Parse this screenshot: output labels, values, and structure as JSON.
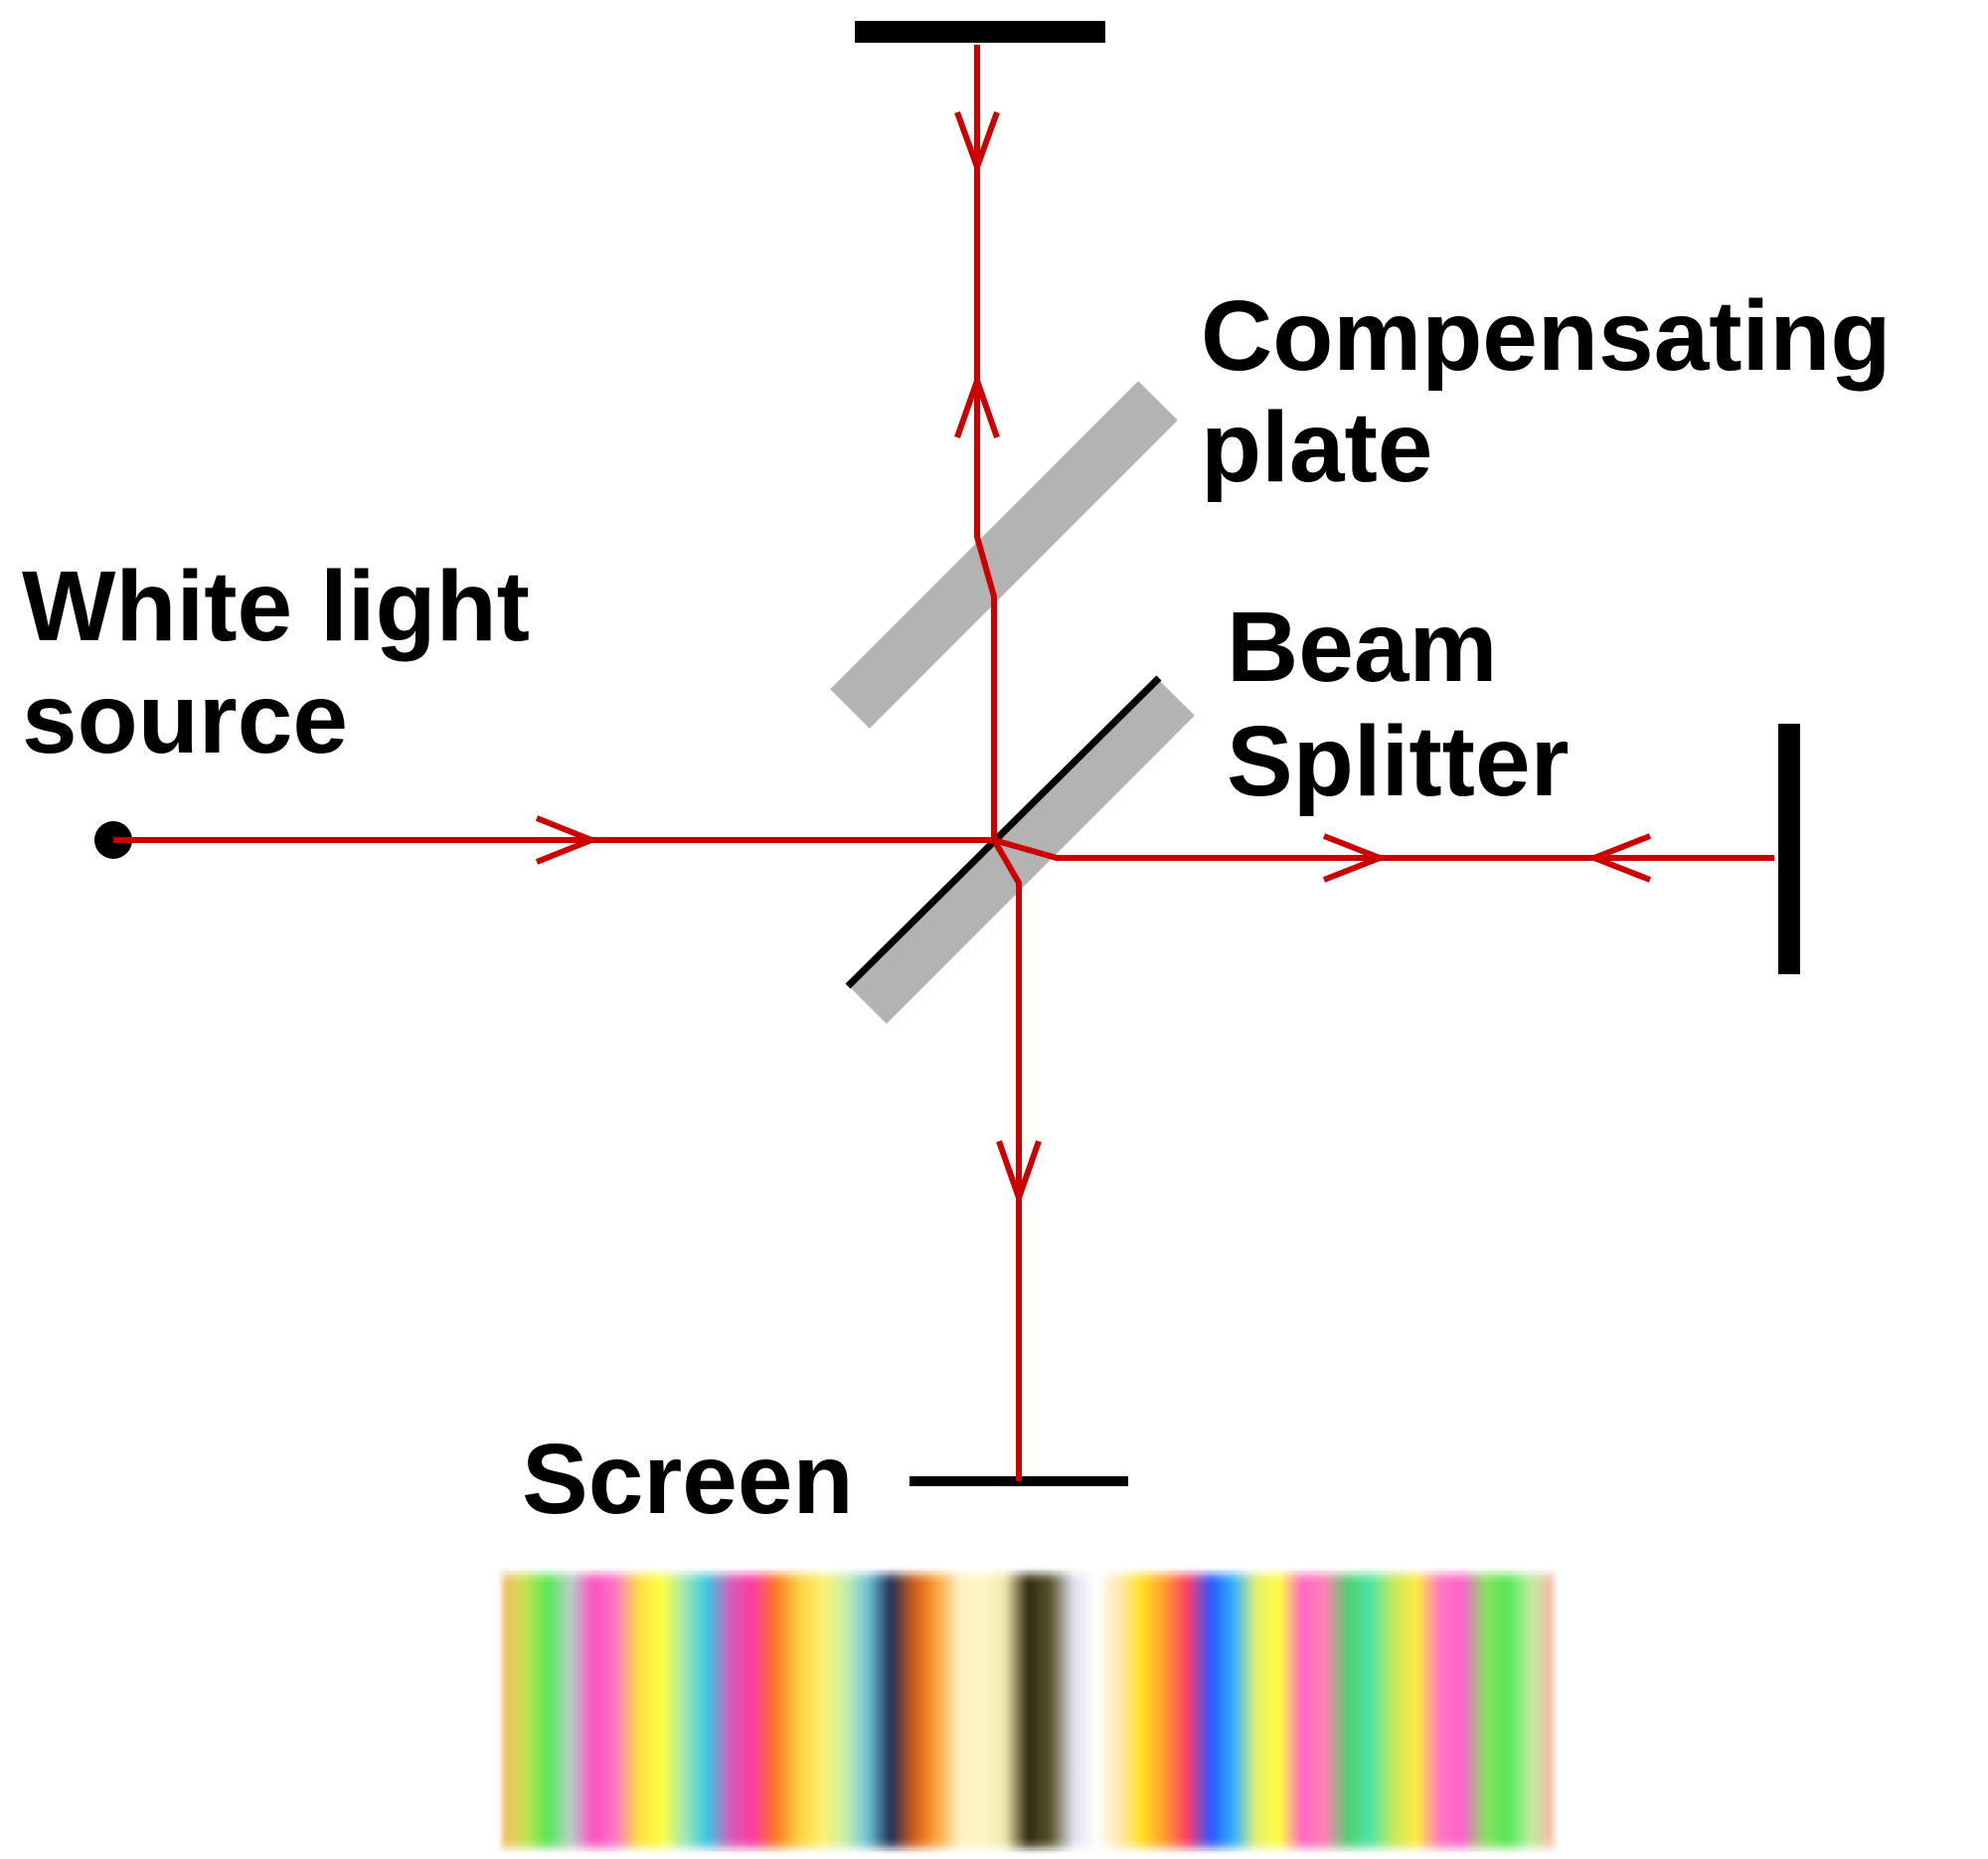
{
  "labels": {
    "compensating_plate_line1": "Compensating",
    "compensating_plate_line2": "plate",
    "source_line1": "White light",
    "source_line2": "source",
    "beam_splitter_line1": "Beam",
    "beam_splitter_line2": "Splitter",
    "screen": "Screen"
  },
  "colors": {
    "beam": "#cc0000",
    "plate": "#b3b3b3",
    "mirror": "#000000",
    "background": "#ffffff"
  },
  "fringe_pattern": {
    "stops": [
      "#f6b86a",
      "#c6e24c",
      "#55e855",
      "#b8cfc8",
      "#ff4fc0",
      "#ff78c6",
      "#ffe040",
      "#ffff48",
      "#9ee8b4",
      "#37c7e6",
      "#d85cb8",
      "#ff3aa0",
      "#ff7a20",
      "#ffd13e",
      "#fff070",
      "#c8f0a8",
      "#6fc2d8",
      "#1e2e58",
      "#d05a18",
      "#ffa238",
      "#fff0c0",
      "#fff6c8",
      "#f0e8a8",
      "#302810",
      "#5a5428",
      "#e0e0f0",
      "#ffffff",
      "#ffe8b0",
      "#ffe020",
      "#ff9a2c",
      "#ff3a6a",
      "#2a56ff",
      "#30b0ff",
      "#e6f06a",
      "#ffff40",
      "#ff66c8",
      "#ff80b0",
      "#50d070",
      "#4ee6a6",
      "#c4e85a",
      "#ffec40",
      "#ff78c0",
      "#ff60d0",
      "#88e060",
      "#54e854",
      "#c0eca0",
      "#ffb4a8"
    ]
  }
}
